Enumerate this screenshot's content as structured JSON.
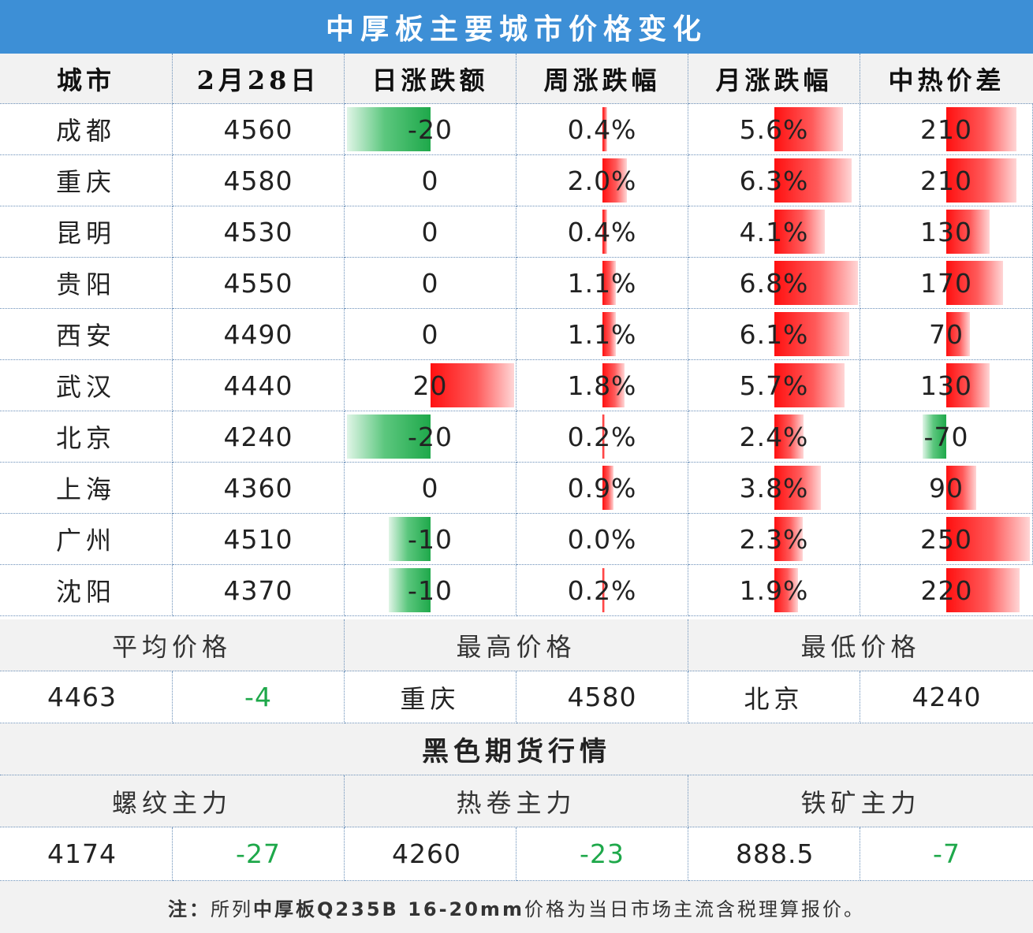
{
  "title": "中厚板主要城市价格变化",
  "headers": [
    "城市",
    "2月28日",
    "日涨跌额",
    "周涨跌幅",
    "月涨跌幅",
    "中热价差"
  ],
  "rows": [
    {
      "city": "成都",
      "price": "4560",
      "daily": "-20",
      "weekly": "0.4%",
      "monthly": "5.6%",
      "spread": "210",
      "daily_v": -20,
      "weekly_v": 0.4,
      "monthly_v": 5.6,
      "spread_v": 210
    },
    {
      "city": "重庆",
      "price": "4580",
      "daily": "0",
      "weekly": "2.0%",
      "monthly": "6.3%",
      "spread": "210",
      "daily_v": 0,
      "weekly_v": 2.0,
      "monthly_v": 6.3,
      "spread_v": 210
    },
    {
      "city": "昆明",
      "price": "4530",
      "daily": "0",
      "weekly": "0.4%",
      "monthly": "4.1%",
      "spread": "130",
      "daily_v": 0,
      "weekly_v": 0.4,
      "monthly_v": 4.1,
      "spread_v": 130
    },
    {
      "city": "贵阳",
      "price": "4550",
      "daily": "0",
      "weekly": "1.1%",
      "monthly": "6.8%",
      "spread": "170",
      "daily_v": 0,
      "weekly_v": 1.1,
      "monthly_v": 6.8,
      "spread_v": 170
    },
    {
      "city": "西安",
      "price": "4490",
      "daily": "0",
      "weekly": "1.1%",
      "monthly": "6.1%",
      "spread": "70",
      "daily_v": 0,
      "weekly_v": 1.1,
      "monthly_v": 6.1,
      "spread_v": 70
    },
    {
      "city": "武汉",
      "price": "4440",
      "daily": "20",
      "weekly": "1.8%",
      "monthly": "5.7%",
      "spread": "130",
      "daily_v": 20,
      "weekly_v": 1.8,
      "monthly_v": 5.7,
      "spread_v": 130
    },
    {
      "city": "北京",
      "price": "4240",
      "daily": "-20",
      "weekly": "0.2%",
      "monthly": "2.4%",
      "spread": "-70",
      "daily_v": -20,
      "weekly_v": 0.2,
      "monthly_v": 2.4,
      "spread_v": -70
    },
    {
      "city": "上海",
      "price": "4360",
      "daily": "0",
      "weekly": "0.9%",
      "monthly": "3.8%",
      "spread": "90",
      "daily_v": 0,
      "weekly_v": 0.9,
      "monthly_v": 3.8,
      "spread_v": 90
    },
    {
      "city": "广州",
      "price": "4510",
      "daily": "-10",
      "weekly": "0.0%",
      "monthly": "2.3%",
      "spread": "250",
      "daily_v": -10,
      "weekly_v": 0.0,
      "monthly_v": 2.3,
      "spread_v": 250
    },
    {
      "city": "沈阳",
      "price": "4370",
      "daily": "-10",
      "weekly": "0.2%",
      "monthly": "1.9%",
      "spread": "220",
      "daily_v": -10,
      "weekly_v": 0.2,
      "monthly_v": 1.9,
      "spread_v": 220
    }
  ],
  "bar_max": {
    "daily": 20,
    "weekly": 6.8,
    "monthly": 6.8,
    "spread": 250
  },
  "summary": {
    "avg_label": "平均价格",
    "max_label": "最高价格",
    "min_label": "最低价格",
    "avg_value": "4463",
    "avg_change": "-4",
    "max_city": "重庆",
    "max_value": "4580",
    "min_city": "北京",
    "min_value": "4240"
  },
  "futures": {
    "title": "黑色期货行情",
    "rebar_label": "螺纹主力",
    "hrc_label": "热卷主力",
    "ore_label": "铁矿主力",
    "rebar_value": "4174",
    "rebar_change": "-27",
    "hrc_value": "4260",
    "hrc_change": "-23",
    "ore_value": "888.5",
    "ore_change": "-7"
  },
  "note": {
    "prefix": "注：",
    "text1": "所列",
    "bold": "中厚板Q235B 16-20mm",
    "text2": "价格为当日市场主流含税理算报价。"
  },
  "colors": {
    "header_blue": "#3d8fd6",
    "up_red": "#ff1010",
    "down_green": "#1ea84a"
  }
}
